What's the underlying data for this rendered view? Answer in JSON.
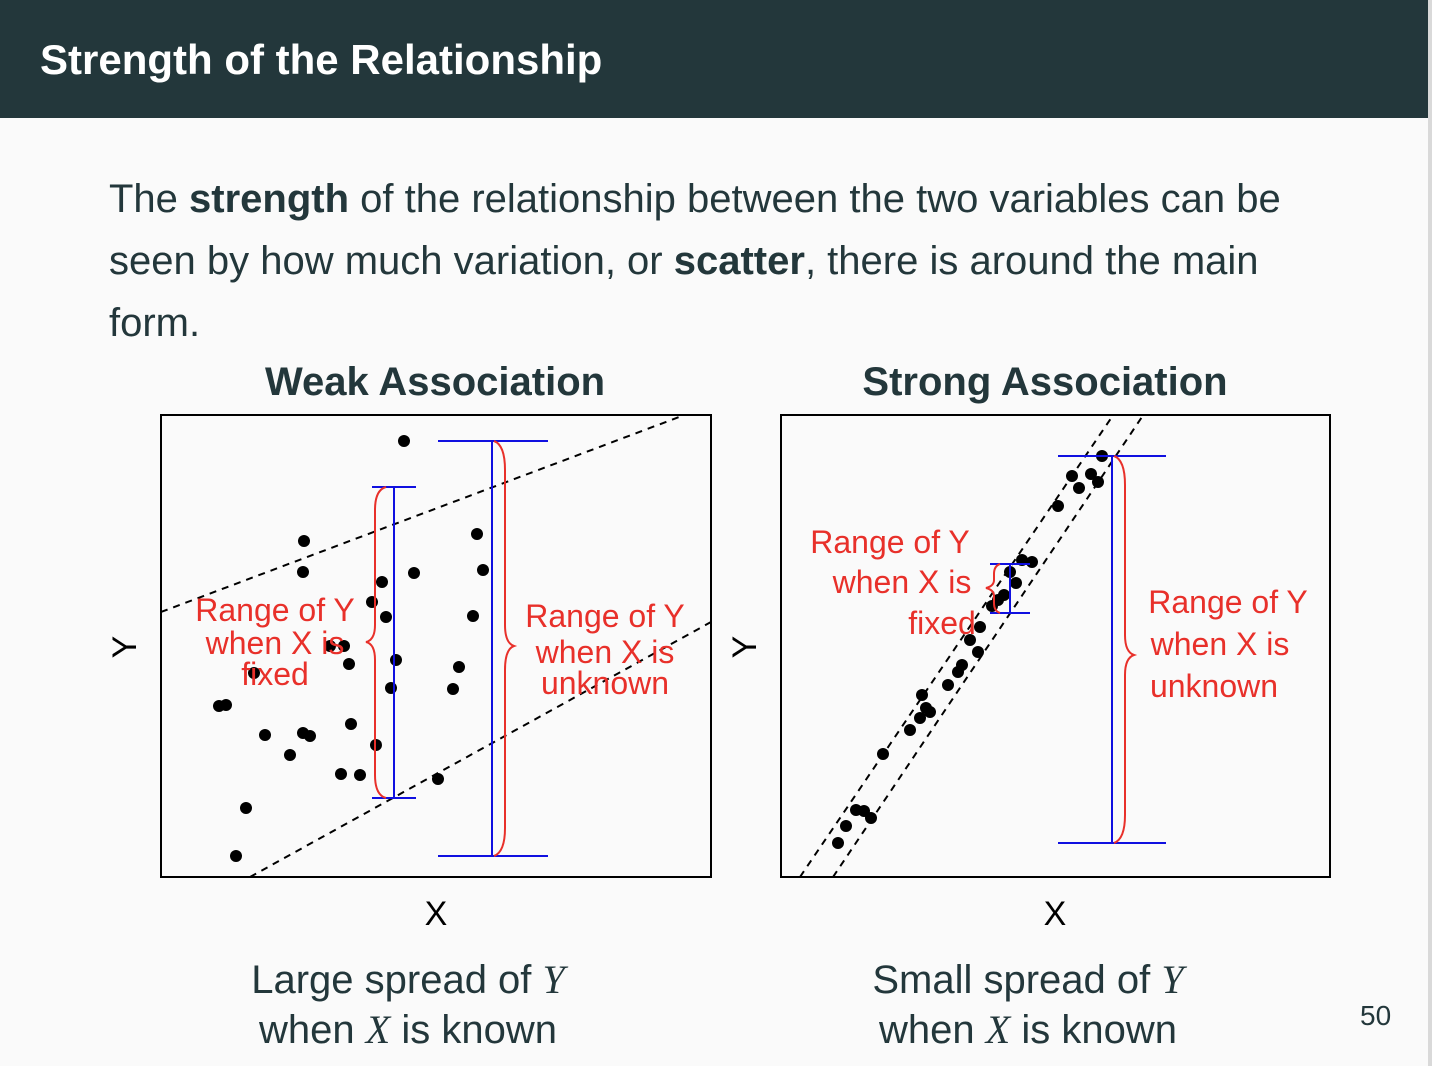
{
  "header": {
    "title": "Strength of the Relationship"
  },
  "intro": {
    "t1": "The ",
    "b1": "strength",
    "t2": " of the relationship between the two variables can be seen by how much variation, or ",
    "b2": "scatter",
    "t3": ", there is around the main form."
  },
  "panels": [
    {
      "title": "Weak Association",
      "xlabel": "X",
      "ylabel": "Y",
      "fixed_label": [
        "Range of Y",
        "when X is",
        "fixed"
      ],
      "unknown_label": [
        "Range of Y",
        "when X is",
        "unknown"
      ],
      "caption": {
        "line1_pre": "Large spread of ",
        "line1_var": "Y",
        "line2_pre": "when ",
        "line2_var": "X",
        "line2_post": " is known"
      }
    },
    {
      "title": "Strong Association",
      "xlabel": "X",
      "ylabel": "Y",
      "fixed_label": [
        "Range of Y",
        "when X is",
        "fixed"
      ],
      "unknown_label": [
        "Range of Y",
        "when X is",
        "unknown"
      ],
      "caption": {
        "line1_pre": "Small spread of ",
        "line1_var": "Y",
        "line2_pre": "when ",
        "line2_var": "X",
        "line2_post": " is known"
      }
    }
  ],
  "page_number": "50",
  "colors": {
    "header_bg": "#23373b",
    "annotation_red": "#e8302a",
    "range_blue": "#1010e0"
  }
}
